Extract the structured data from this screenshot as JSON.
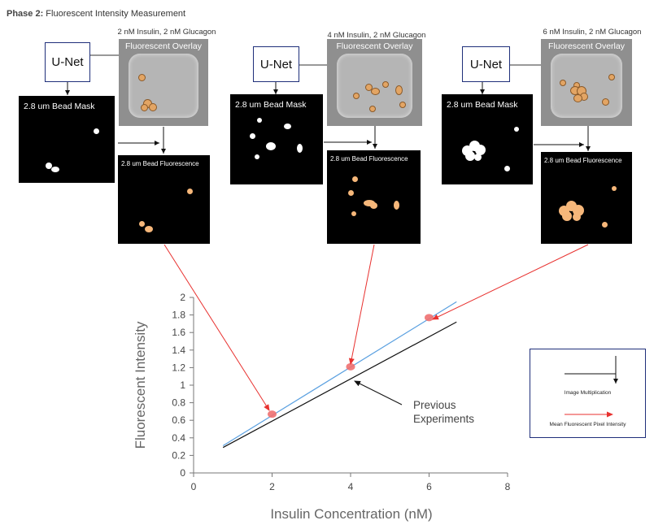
{
  "header": {
    "phase_bold": "Phase 2:",
    "phase_rest": " Fluorescent Intensity Measurement"
  },
  "conditions": [
    {
      "label": "2 nM Insulin, 2 nM Glucagon"
    },
    {
      "label": "4 nM Insulin, 2 nM Glucagon"
    },
    {
      "label": "6 nM Insulin, 2 nM Glucagon"
    }
  ],
  "labels": {
    "unet": "U-Net",
    "overlay": "Fluorescent Overlay",
    "mask": "2.8 um Bead Mask",
    "fluorescence": "2.8 um Bead Fluorescence"
  },
  "legend": {
    "multiplication": "Image Multiplication",
    "mean_intensity": "Mean Fluorescent Pixel Intensity"
  },
  "annotation": {
    "previous": "Previous Experiments"
  },
  "colors": {
    "unet_border": "#1f2f7a",
    "bead_fluo": "#f6b77a",
    "arrow_red": "#e8312f",
    "line_blue": "#5aa0e0",
    "line_black": "#111111",
    "point": "#f07070"
  },
  "chart_data": {
    "type": "line",
    "xlabel": "Insulin Concentration (nM)",
    "ylabel": "Fluorescent Intensity",
    "xlim": [
      0,
      8
    ],
    "ylim": [
      0,
      2
    ],
    "x_ticks": [
      "0",
      "2",
      "4",
      "6",
      "8"
    ],
    "y_ticks": [
      "0",
      "0.2",
      "0.4",
      "0.6",
      "0.8",
      "1",
      "1.2",
      "1.4",
      "1.6",
      "1.8",
      "2"
    ],
    "grid": false,
    "series": [
      {
        "x": [
          0.75,
          6.7
        ],
        "y": [
          0.31,
          1.95
        ]
      },
      {
        "x": [
          0.75,
          6.7
        ],
        "y": [
          0.29,
          1.72
        ]
      }
    ],
    "points": {
      "x": [
        2,
        4,
        6
      ],
      "y": [
        0.67,
        1.21,
        1.77
      ]
    }
  }
}
